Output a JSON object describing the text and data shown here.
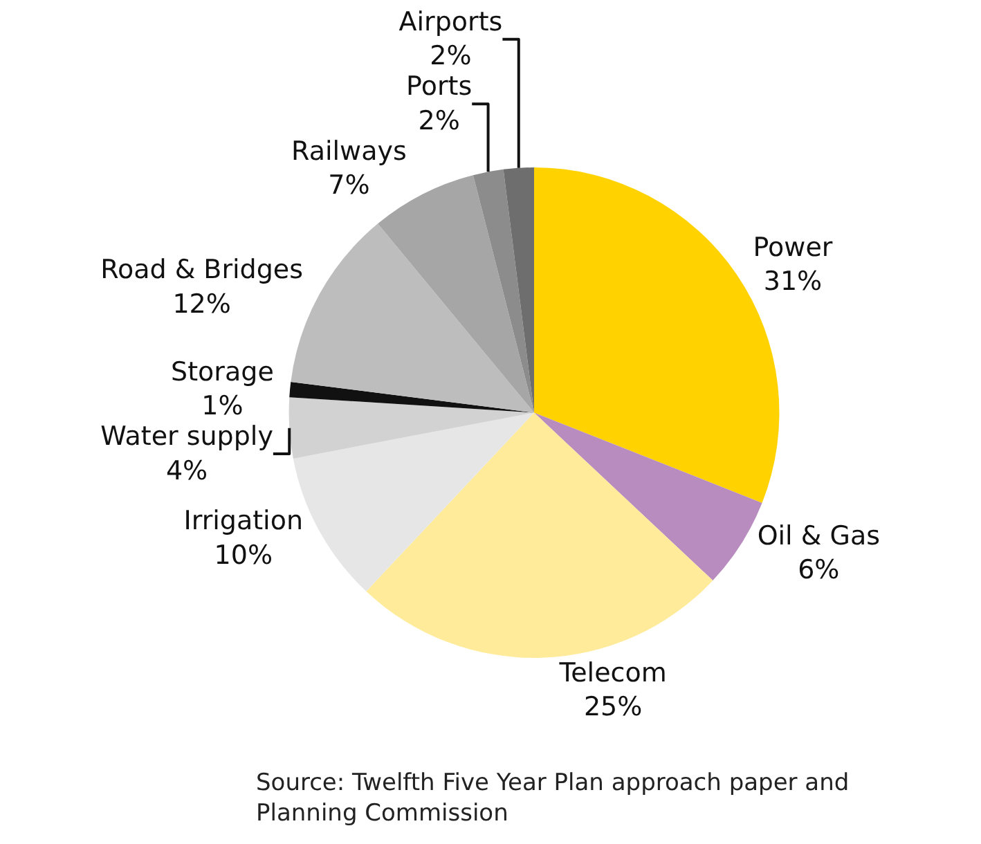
{
  "chart_data": {
    "type": "pie",
    "categories": [
      "Power",
      "Oil & Gas",
      "Telecom",
      "Irrigation",
      "Water supply",
      "Storage",
      "Road & Bridges",
      "Railways",
      "Ports",
      "Airports"
    ],
    "values": [
      31,
      6,
      25,
      10,
      4,
      1,
      12,
      7,
      2,
      2
    ],
    "value_labels": [
      "31%",
      "6%",
      "25%",
      "10%",
      "4%",
      "1%",
      "12%",
      "7%",
      "2%",
      "2%"
    ],
    "colors": [
      "#ffd200",
      "#b98cc0",
      "#ffeb99",
      "#e6e6e6",
      "#d2d2d2",
      "#111111",
      "#bdbdbd",
      "#a6a6a6",
      "#8c8c8c",
      "#6e6e6e"
    ],
    "legend": false,
    "annotations": [
      "Source: Twelfth Five Year Plan approach paper and Planning Commission"
    ]
  }
}
